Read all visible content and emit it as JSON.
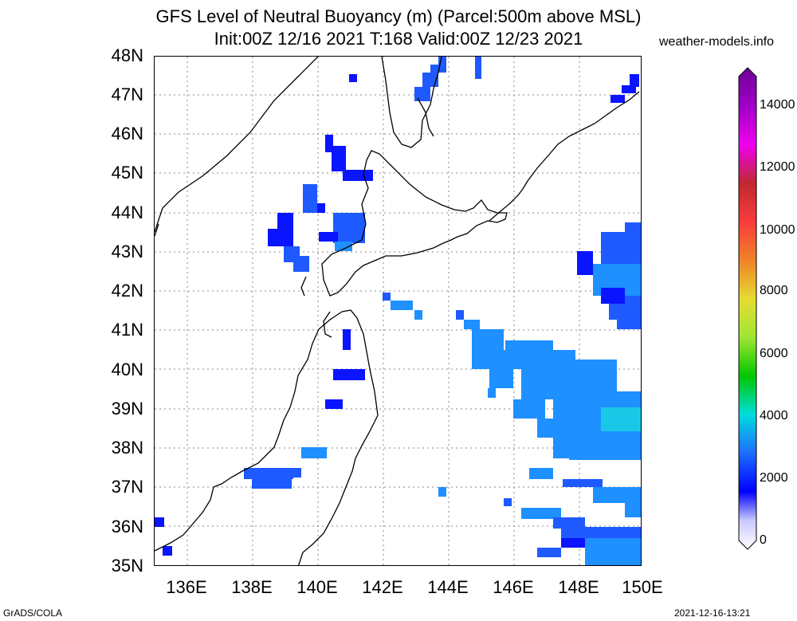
{
  "title_line1": "GFS Level of Neutral Buoyancy (m) (Parcel:500m above MSL)",
  "title_line2": "Init:00Z 12/16 2021 T:168 Valid:00Z 12/23 2021",
  "site": "weather-models.info",
  "footer_left": "GrADS/COLA",
  "footer_right": "2021-12-16-13:21",
  "lat_labels": [
    "48N",
    "47N",
    "46N",
    "45N",
    "44N",
    "43N",
    "42N",
    "41N",
    "40N",
    "39N",
    "38N",
    "37N",
    "36N",
    "35N"
  ],
  "lon_labels": [
    "136E",
    "138E",
    "140E",
    "142E",
    "144E",
    "146E",
    "148E",
    "150E"
  ],
  "colorbar_labels": [
    "14000",
    "12000",
    "10000",
    "8000",
    "6000",
    "4000",
    "2000",
    "0"
  ],
  "colors": {
    "land_line": "#000000",
    "grid": "#888888",
    "low": "#0a14ff",
    "mid": "#1e5aff",
    "high": "#1e90ff",
    "cyan": "#19c8e6"
  }
}
